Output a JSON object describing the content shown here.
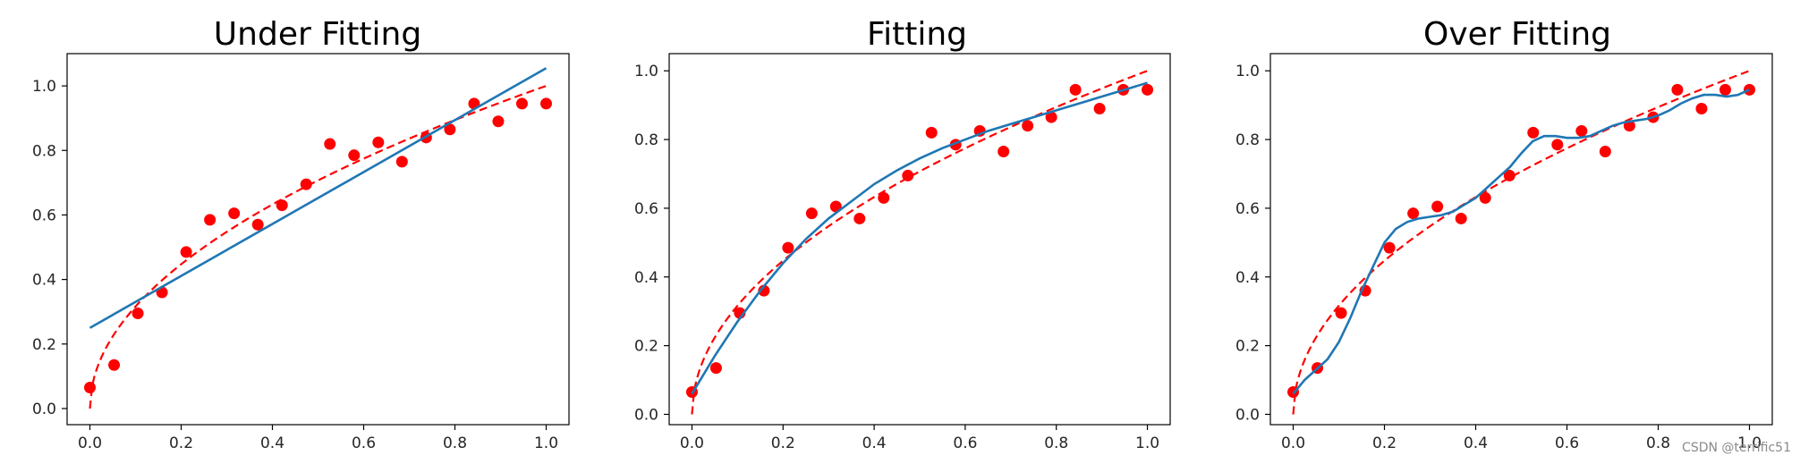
{
  "colors": {
    "points": "#ff0000",
    "true_curve": "#ff0000",
    "fit": "#1f77b4"
  },
  "watermark": "CSDN @terrific51",
  "chart_data": [
    {
      "type": "scatter",
      "title": "Under Fitting",
      "xlim": [
        -0.05,
        1.05
      ],
      "ylim": [
        -0.05,
        1.1
      ],
      "xticks": [
        "0.0",
        "0.2",
        "0.4",
        "0.6",
        "0.8",
        "1.0"
      ],
      "yticks": [
        "0.0",
        "0.2",
        "0.4",
        "0.6",
        "0.8",
        "1.0"
      ],
      "points": {
        "x": [
          0.0,
          0.053,
          0.105,
          0.158,
          0.211,
          0.263,
          0.316,
          0.368,
          0.421,
          0.474,
          0.526,
          0.579,
          0.632,
          0.684,
          0.737,
          0.789,
          0.842,
          0.895,
          0.947,
          1.0
        ],
        "y": [
          0.065,
          0.135,
          0.295,
          0.36,
          0.485,
          0.585,
          0.605,
          0.57,
          0.63,
          0.695,
          0.82,
          0.785,
          0.825,
          0.765,
          0.84,
          0.865,
          0.945,
          0.89,
          0.945,
          0.945
        ]
      },
      "true_curve": {
        "style": "dashed",
        "function": "y = sqrt(x)"
      },
      "fit": {
        "degree": 1,
        "x": [
          0.0,
          1.0
        ],
        "y": [
          0.25,
          1.055
        ]
      }
    },
    {
      "type": "scatter",
      "title": "Fitting",
      "xlim": [
        -0.05,
        1.05
      ],
      "ylim": [
        -0.03,
        1.05
      ],
      "xticks": [
        "0.0",
        "0.2",
        "0.4",
        "0.6",
        "0.8",
        "1.0"
      ],
      "yticks": [
        "0.0",
        "0.2",
        "0.4",
        "0.6",
        "0.8",
        "1.0"
      ],
      "points": {
        "x": [
          0.0,
          0.053,
          0.105,
          0.158,
          0.211,
          0.263,
          0.316,
          0.368,
          0.421,
          0.474,
          0.526,
          0.579,
          0.632,
          0.684,
          0.737,
          0.789,
          0.842,
          0.895,
          0.947,
          1.0
        ],
        "y": [
          0.065,
          0.135,
          0.295,
          0.36,
          0.485,
          0.585,
          0.605,
          0.57,
          0.63,
          0.695,
          0.82,
          0.785,
          0.825,
          0.765,
          0.84,
          0.865,
          0.945,
          0.89,
          0.945,
          0.945
        ]
      },
      "true_curve": {
        "style": "dashed",
        "function": "y = sqrt(x)"
      },
      "fit": {
        "x": [
          0.0,
          0.05,
          0.1,
          0.15,
          0.2,
          0.25,
          0.3,
          0.35,
          0.4,
          0.45,
          0.5,
          0.55,
          0.6,
          0.65,
          0.7,
          0.75,
          0.8,
          0.85,
          0.9,
          0.95,
          1.0
        ],
        "y": [
          0.06,
          0.17,
          0.27,
          0.36,
          0.44,
          0.51,
          0.57,
          0.62,
          0.67,
          0.71,
          0.745,
          0.775,
          0.8,
          0.825,
          0.845,
          0.865,
          0.885,
          0.905,
          0.925,
          0.945,
          0.965
        ]
      }
    },
    {
      "type": "scatter",
      "title": "Over Fitting",
      "xlim": [
        -0.05,
        1.05
      ],
      "ylim": [
        -0.03,
        1.05
      ],
      "xticks": [
        "0.0",
        "0.2",
        "0.4",
        "0.6",
        "0.8",
        "1.0"
      ],
      "yticks": [
        "0.0",
        "0.2",
        "0.4",
        "0.6",
        "0.8",
        "1.0"
      ],
      "points": {
        "x": [
          0.0,
          0.053,
          0.105,
          0.158,
          0.211,
          0.263,
          0.316,
          0.368,
          0.421,
          0.474,
          0.526,
          0.579,
          0.632,
          0.684,
          0.737,
          0.789,
          0.842,
          0.895,
          0.947,
          1.0
        ],
        "y": [
          0.065,
          0.135,
          0.295,
          0.36,
          0.485,
          0.585,
          0.605,
          0.57,
          0.63,
          0.695,
          0.82,
          0.785,
          0.825,
          0.765,
          0.84,
          0.865,
          0.945,
          0.89,
          0.945,
          0.945
        ]
      },
      "true_curve": {
        "style": "dashed",
        "function": "y = sqrt(x)"
      },
      "fit": {
        "x": [
          0.0,
          0.025,
          0.05,
          0.075,
          0.1,
          0.125,
          0.15,
          0.175,
          0.2,
          0.225,
          0.25,
          0.275,
          0.3,
          0.325,
          0.35,
          0.375,
          0.4,
          0.425,
          0.45,
          0.475,
          0.5,
          0.525,
          0.55,
          0.575,
          0.6,
          0.625,
          0.65,
          0.675,
          0.7,
          0.725,
          0.75,
          0.775,
          0.8,
          0.825,
          0.85,
          0.875,
          0.9,
          0.925,
          0.95,
          0.975,
          1.0
        ],
        "y": [
          0.06,
          0.1,
          0.13,
          0.16,
          0.21,
          0.28,
          0.36,
          0.43,
          0.5,
          0.54,
          0.56,
          0.57,
          0.575,
          0.58,
          0.59,
          0.61,
          0.63,
          0.66,
          0.69,
          0.72,
          0.76,
          0.795,
          0.81,
          0.81,
          0.805,
          0.805,
          0.81,
          0.825,
          0.84,
          0.85,
          0.855,
          0.86,
          0.87,
          0.885,
          0.905,
          0.92,
          0.93,
          0.93,
          0.925,
          0.93,
          0.945
        ]
      }
    }
  ]
}
